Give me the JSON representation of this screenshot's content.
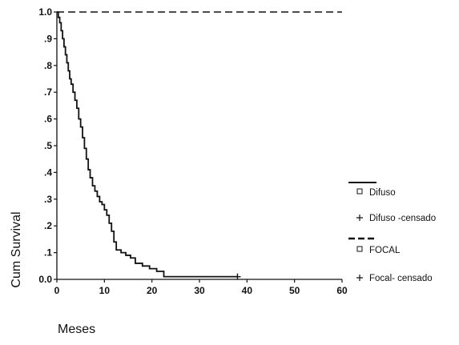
{
  "chart_data": {
    "type": "line",
    "title": "",
    "xlabel": "Meses",
    "ylabel": "Cum Survival",
    "xlim": [
      0,
      60
    ],
    "ylim": [
      0,
      1
    ],
    "x_ticks": [
      {
        "value": 0,
        "label": "0"
      },
      {
        "value": 10,
        "label": "10"
      },
      {
        "value": 20,
        "label": "20"
      },
      {
        "value": 30,
        "label": "30"
      },
      {
        "value": 40,
        "label": "40"
      },
      {
        "value": 50,
        "label": "50"
      },
      {
        "value": 60,
        "label": "60"
      }
    ],
    "y_ticks": [
      {
        "value": 0.0,
        "label": "0.0"
      },
      {
        "value": 0.1,
        "label": ".1"
      },
      {
        "value": 0.2,
        "label": ".2"
      },
      {
        "value": 0.3,
        "label": ".3"
      },
      {
        "value": 0.4,
        "label": ".4"
      },
      {
        "value": 0.5,
        "label": ".5"
      },
      {
        "value": 0.6,
        "label": ".6"
      },
      {
        "value": 0.7,
        "label": ".7"
      },
      {
        "value": 0.8,
        "label": ".8"
      },
      {
        "value": 0.9,
        "label": ".9"
      },
      {
        "value": 1.0,
        "label": "1.0"
      }
    ],
    "grid": false,
    "legend_position": "right",
    "series": [
      {
        "name": "Difuso",
        "style": "solid",
        "color": "#111111",
        "x": [
          0,
          0.3,
          0.6,
          0.9,
          1.2,
          1.5,
          1.8,
          2.1,
          2.4,
          2.7,
          3.0,
          3.4,
          3.8,
          4.2,
          4.6,
          5.0,
          5.4,
          5.8,
          6.2,
          6.6,
          7.0,
          7.5,
          8.0,
          8.5,
          9.0,
          9.5,
          10.0,
          10.5,
          11.0,
          11.5,
          12.0,
          12.5,
          13.5,
          14.5,
          15.5,
          16.5,
          18.0,
          19.5,
          21.0,
          22.5,
          38
        ],
        "y": [
          1.0,
          0.98,
          0.96,
          0.93,
          0.9,
          0.87,
          0.84,
          0.81,
          0.78,
          0.75,
          0.73,
          0.7,
          0.67,
          0.64,
          0.6,
          0.57,
          0.53,
          0.49,
          0.45,
          0.41,
          0.38,
          0.35,
          0.33,
          0.31,
          0.29,
          0.28,
          0.26,
          0.24,
          0.21,
          0.18,
          0.14,
          0.11,
          0.1,
          0.09,
          0.08,
          0.06,
          0.05,
          0.04,
          0.03,
          0.01,
          0.01
        ]
      },
      {
        "name": "FOCAL",
        "style": "dashed",
        "color": "#111111",
        "x": [
          0,
          60
        ],
        "y": [
          1.0,
          1.0
        ]
      }
    ],
    "censored_points": [
      {
        "series": "Difuso",
        "x": 38,
        "y": 0.01
      }
    ],
    "legend": [
      {
        "kind": "line-solid",
        "label": ""
      },
      {
        "kind": "square",
        "label": "Difuso"
      },
      {
        "kind": "plus",
        "label": "Difuso -censado"
      },
      {
        "kind": "line-dashed",
        "label": ""
      },
      {
        "kind": "square",
        "label": "FOCAL"
      },
      {
        "kind": "plus",
        "label": "Focal- censado"
      }
    ]
  }
}
